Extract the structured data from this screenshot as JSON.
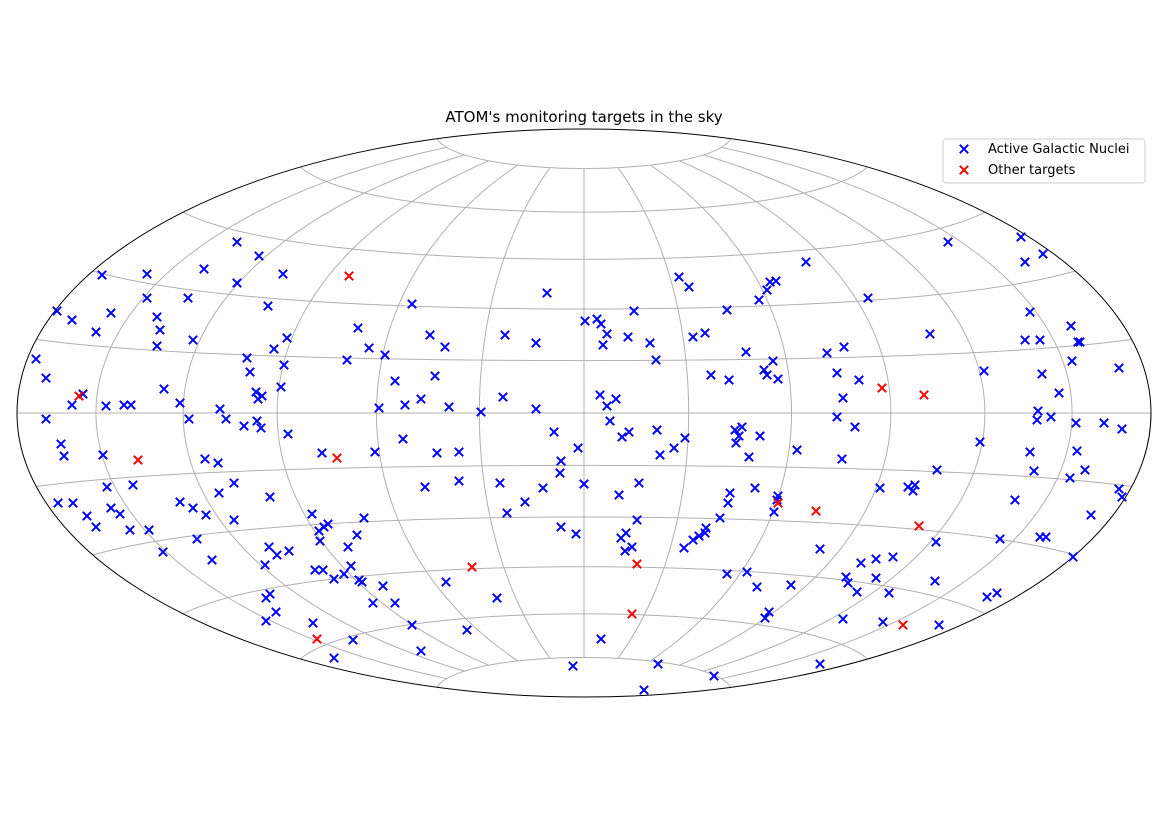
{
  "chart_data": {
    "type": "scatter",
    "projection": "aitoff-hammer all-sky (ellipse)",
    "title": "ATOM's monitoring targets in the sky",
    "xlabel": "",
    "ylabel": "",
    "grid": true,
    "legend_position": "top-right",
    "series": [
      {
        "name": "Active Galactic Nuclei",
        "marker": "x",
        "color": "#0000ff",
        "points": [
          [
            36,
            359
          ],
          [
            46,
            378
          ],
          [
            57,
            311
          ],
          [
            46,
            419
          ],
          [
            61,
            444
          ],
          [
            64,
            456
          ],
          [
            58,
            503
          ],
          [
            73,
            503
          ],
          [
            72,
            320
          ],
          [
            72,
            405
          ],
          [
            83,
            394
          ],
          [
            96,
            332
          ],
          [
            102,
            275
          ],
          [
            111,
            313
          ],
          [
            103,
            455
          ],
          [
            106,
            406
          ],
          [
            107,
            487
          ],
          [
            111,
            508
          ],
          [
            120,
            514
          ],
          [
            124,
            405
          ],
          [
            131,
            405
          ],
          [
            87,
            516
          ],
          [
            96,
            527
          ],
          [
            130,
            530
          ],
          [
            133,
            485
          ],
          [
            147,
            274
          ],
          [
            147,
            298
          ],
          [
            157,
            317
          ],
          [
            160,
            330
          ],
          [
            157,
            346
          ],
          [
            164,
            389
          ],
          [
            180,
            403
          ],
          [
            189,
            419
          ],
          [
            149,
            530
          ],
          [
            163,
            552
          ],
          [
            180,
            502
          ],
          [
            193,
            508
          ],
          [
            197,
            539
          ],
          [
            188,
            298
          ],
          [
            193,
            340
          ],
          [
            204,
            269
          ],
          [
            205,
            459
          ],
          [
            212,
            560
          ],
          [
            206,
            515
          ],
          [
            218,
            463
          ],
          [
            219,
            493
          ],
          [
            220,
            409
          ],
          [
            226,
            419
          ],
          [
            237,
            242
          ],
          [
            237,
            283
          ],
          [
            234,
            483
          ],
          [
            234,
            520
          ],
          [
            247,
            358
          ],
          [
            259,
            256
          ],
          [
            250,
            372
          ],
          [
            244,
            426
          ],
          [
            256,
            392
          ],
          [
            262,
            396
          ],
          [
            257,
            421
          ],
          [
            258,
            399
          ],
          [
            261,
            428
          ],
          [
            274,
            349
          ],
          [
            268,
            306
          ],
          [
            283,
            274
          ],
          [
            287,
            338
          ],
          [
            284,
            365
          ],
          [
            281,
            387
          ],
          [
            288,
            434
          ],
          [
            270,
            497
          ],
          [
            265,
            565
          ],
          [
            269,
            547
          ],
          [
            277,
            555
          ],
          [
            289,
            551
          ],
          [
            266,
            598
          ],
          [
            270,
            594
          ],
          [
            266,
            621
          ],
          [
            276,
            612
          ],
          [
            312,
            514
          ],
          [
            319,
            531
          ],
          [
            324,
            527
          ],
          [
            320,
            541
          ],
          [
            328,
            524
          ],
          [
            315,
            570
          ],
          [
            323,
            570
          ],
          [
            334,
            579
          ],
          [
            344,
            574
          ],
          [
            348,
            547
          ],
          [
            351,
            566
          ],
          [
            359,
            580
          ],
          [
            357,
            535
          ],
          [
            364,
            518
          ],
          [
            375,
            452
          ],
          [
            322,
            453
          ],
          [
            347,
            360
          ],
          [
            358,
            328
          ],
          [
            369,
            348
          ],
          [
            385,
            355
          ],
          [
            395,
            381
          ],
          [
            379,
            408
          ],
          [
            403,
            439
          ],
          [
            421,
            399
          ],
          [
            405,
            405
          ],
          [
            412,
            304
          ],
          [
            430,
            335
          ],
          [
            445,
            347
          ],
          [
            435,
            376
          ],
          [
            449,
            407
          ],
          [
            437,
            453
          ],
          [
            459,
            452
          ],
          [
            425,
            487
          ],
          [
            459,
            481
          ],
          [
            373,
            603
          ],
          [
            383,
            586
          ],
          [
            395,
            603
          ],
          [
            362,
            582
          ],
          [
            353,
            640
          ],
          [
            334,
            658
          ],
          [
            313,
            623
          ],
          [
            412,
            625
          ],
          [
            421,
            651
          ],
          [
            446,
            582
          ],
          [
            467,
            630
          ],
          [
            497,
            598
          ],
          [
            481,
            412
          ],
          [
            503,
            397
          ],
          [
            505,
            335
          ],
          [
            536,
            343
          ],
          [
            536,
            409
          ],
          [
            547,
            293
          ],
          [
            554,
            432
          ],
          [
            561,
            461
          ],
          [
            578,
            448
          ],
          [
            560,
            473
          ],
          [
            543,
            488
          ],
          [
            500,
            483
          ],
          [
            507,
            513
          ],
          [
            525,
            502
          ],
          [
            561,
            527
          ],
          [
            576,
            534
          ],
          [
            584,
            484
          ],
          [
            585,
            321
          ],
          [
            597,
            319
          ],
          [
            601,
            324
          ],
          [
            607,
            334
          ],
          [
            603,
            345
          ],
          [
            628,
            337
          ],
          [
            634,
            311
          ],
          [
            650,
            343
          ],
          [
            656,
            360
          ],
          [
            600,
            395
          ],
          [
            607,
            406
          ],
          [
            616,
            399
          ],
          [
            610,
            421
          ],
          [
            622,
            437
          ],
          [
            629,
            432
          ],
          [
            657,
            430
          ],
          [
            660,
            455
          ],
          [
            674,
            448
          ],
          [
            685,
            438
          ],
          [
            639,
            483
          ],
          [
            619,
            495
          ],
          [
            637,
            520
          ],
          [
            621,
            538
          ],
          [
            626,
            533
          ],
          [
            625,
            551
          ],
          [
            632,
            547
          ],
          [
            573,
            666
          ],
          [
            601,
            639
          ],
          [
            658,
            664
          ],
          [
            644,
            690
          ],
          [
            714,
            676
          ],
          [
            679,
            277
          ],
          [
            689,
            287
          ],
          [
            693,
            337
          ],
          [
            705,
            333
          ],
          [
            727,
            310
          ],
          [
            711,
            375
          ],
          [
            729,
            380
          ],
          [
            746,
            352
          ],
          [
            764,
            370
          ],
          [
            773,
            361
          ],
          [
            778,
            379
          ],
          [
            767,
            375
          ],
          [
            735,
            430
          ],
          [
            739,
            436
          ],
          [
            742,
            427
          ],
          [
            736,
            443
          ],
          [
            760,
            436
          ],
          [
            749,
            457
          ],
          [
            684,
            548
          ],
          [
            693,
            540
          ],
          [
            699,
            536
          ],
          [
            706,
            528
          ],
          [
            705,
            533
          ],
          [
            720,
            518
          ],
          [
            728,
            503
          ],
          [
            730,
            493
          ],
          [
            727,
            574
          ],
          [
            747,
            572
          ],
          [
            755,
            488
          ],
          [
            757,
            587
          ],
          [
            778,
            496
          ],
          [
            777,
            500
          ],
          [
            774,
            512
          ],
          [
            759,
            300
          ],
          [
            767,
            290
          ],
          [
            770,
            282
          ],
          [
            776,
            281
          ],
          [
            806,
            262
          ],
          [
            797,
            450
          ],
          [
            791,
            585
          ],
          [
            769,
            612
          ],
          [
            765,
            618
          ],
          [
            820,
            549
          ],
          [
            820,
            664
          ],
          [
            827,
            353
          ],
          [
            837,
            373
          ],
          [
            837,
            417
          ],
          [
            842,
            459
          ],
          [
            843,
            398
          ],
          [
            844,
            347
          ],
          [
            859,
            380
          ],
          [
            855,
            427
          ],
          [
            868,
            298
          ],
          [
            846,
            577
          ],
          [
            848,
            583
          ],
          [
            857,
            592
          ],
          [
            843,
            619
          ],
          [
            861,
            563
          ],
          [
            876,
            559
          ],
          [
            876,
            578
          ],
          [
            893,
            557
          ],
          [
            889,
            593
          ],
          [
            883,
            622
          ],
          [
            880,
            488
          ],
          [
            908,
            487
          ],
          [
            915,
            485
          ],
          [
            913,
            491
          ],
          [
            937,
            470
          ],
          [
            930,
            334
          ],
          [
            936,
            542
          ],
          [
            935,
            581
          ],
          [
            939,
            625
          ],
          [
            948,
            242
          ],
          [
            984,
            371
          ],
          [
            980,
            442
          ],
          [
            1021,
            237
          ],
          [
            1025,
            262
          ],
          [
            1043,
            254
          ],
          [
            1030,
            312
          ],
          [
            1025,
            340
          ],
          [
            1040,
            340
          ],
          [
            1042,
            374
          ],
          [
            1059,
            393
          ],
          [
            1071,
            326
          ],
          [
            1078,
            342
          ],
          [
            1080,
            342
          ],
          [
            1072,
            361
          ],
          [
            1038,
            411
          ],
          [
            1037,
            420
          ],
          [
            1051,
            417
          ],
          [
            1076,
            423
          ],
          [
            1104,
            423
          ],
          [
            1122,
            429
          ],
          [
            1119,
            368
          ],
          [
            1030,
            452
          ],
          [
            1034,
            471
          ],
          [
            1077,
            451
          ],
          [
            1085,
            470
          ],
          [
            1070,
            478
          ],
          [
            1015,
            500
          ],
          [
            1000,
            539
          ],
          [
            1040,
            537
          ],
          [
            1046,
            537
          ],
          [
            1091,
            515
          ],
          [
            1119,
            489
          ],
          [
            1122,
            497
          ],
          [
            997,
            593
          ],
          [
            987,
            597
          ],
          [
            1073,
            557
          ]
        ]
      },
      {
        "name": "Other targets",
        "marker": "x",
        "color": "#ff0000",
        "points": [
          [
            79,
            396
          ],
          [
            138,
            460
          ],
          [
            337,
            458
          ],
          [
            349,
            276
          ],
          [
            472,
            567
          ],
          [
            637,
            564
          ],
          [
            632,
            614
          ],
          [
            317,
            639
          ],
          [
            778,
            503
          ],
          [
            816,
            511
          ],
          [
            882,
            388
          ],
          [
            924,
            395
          ],
          [
            919,
            526
          ],
          [
            903,
            625
          ]
        ]
      }
    ]
  }
}
